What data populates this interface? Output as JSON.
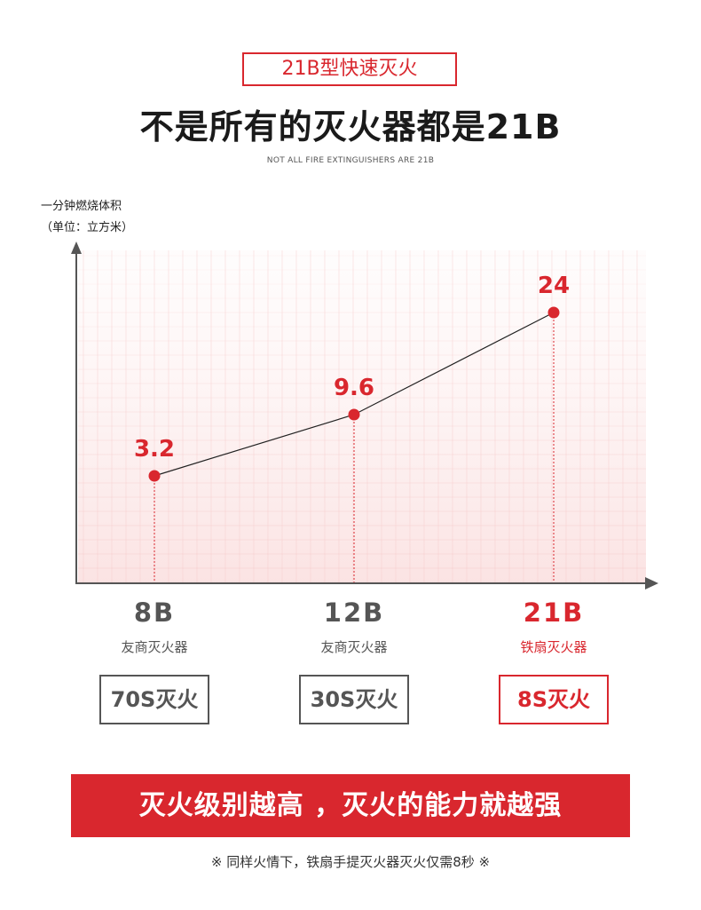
{
  "header": {
    "tag": "21B型快速灭火",
    "headline": "不是所有的灭火器都是21B",
    "subhead": "NOT ALL FIRE EXTINGUISHERS ARE 21B"
  },
  "chart_data": {
    "type": "line",
    "ylabel": "一分钟燃烧体积",
    "yunit": "（单位：立方米）",
    "categories": [
      "8B",
      "12B",
      "21B"
    ],
    "values": [
      3.2,
      9.6,
      24
    ],
    "value_labels": [
      "3.2",
      "9.6",
      "24"
    ],
    "point_color": "#d9272e",
    "line_color": "#222222",
    "grid": true
  },
  "products": [
    {
      "rating": "8B",
      "brand": "友商灭火器",
      "time": "70S灭火",
      "highlight": false
    },
    {
      "rating": "12B",
      "brand": "友商灭火器",
      "time": "30S灭火",
      "highlight": false
    },
    {
      "rating": "21B",
      "brand": "铁扇灭火器",
      "time": "8S灭火",
      "highlight": true
    }
  ],
  "banner": {
    "text": "灭火级别越高 ，灭火的能力就越强"
  },
  "footnote": {
    "text": "※ 同样火情下，铁扇手提灭火器灭火仅需8秒 ※"
  },
  "colors": {
    "accent": "#d9272e",
    "grey": "#555555"
  }
}
